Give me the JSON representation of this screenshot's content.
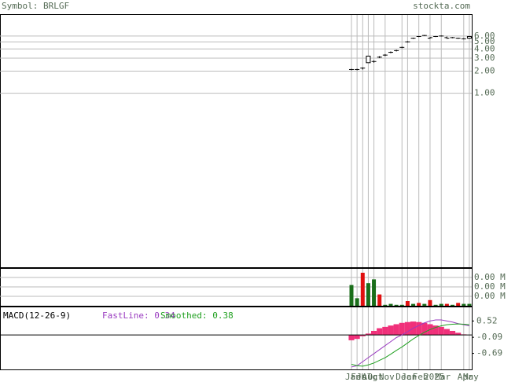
{
  "chart_data": [
    {
      "type": "candlestick",
      "title": "Symbol: BRLGF",
      "source": "stockta.com",
      "log_scale": true,
      "grid": true,
      "categories": [
        "Jan",
        "Feb",
        "Jul",
        "Aug",
        "Oct",
        null,
        "Nov",
        null,
        null,
        "Dec",
        "Jan",
        null,
        "Feb",
        null,
        "2025",
        null,
        "Mar",
        null,
        null,
        null,
        "Apr",
        "May"
      ],
      "open": [
        2.1,
        2.1,
        2.2,
        2.6,
        2.7,
        3.1,
        3.3,
        3.6,
        3.8,
        4.2,
        5.0,
        5.6,
        5.9,
        6.1,
        5.6,
        5.9,
        6.0,
        5.7,
        5.7,
        5.6,
        5.5,
        5.6
      ],
      "high": [
        2.15,
        2.15,
        2.25,
        3.2,
        2.8,
        3.2,
        3.4,
        3.7,
        3.9,
        4.3,
        5.1,
        5.7,
        6.0,
        6.2,
        5.8,
        6.0,
        6.1,
        5.9,
        5.8,
        5.7,
        5.6,
        6.0
      ],
      "low": [
        2.05,
        2.05,
        2.1,
        2.6,
        2.6,
        3.0,
        3.2,
        3.5,
        3.7,
        4.1,
        4.9,
        5.5,
        5.8,
        6.0,
        5.5,
        5.8,
        5.9,
        5.5,
        5.6,
        5.5,
        5.4,
        5.5
      ],
      "close": [
        2.1,
        2.1,
        2.2,
        3.2,
        2.7,
        3.1,
        3.3,
        3.6,
        3.8,
        4.2,
        5.0,
        5.6,
        5.9,
        6.1,
        5.7,
        5.9,
        6.0,
        5.6,
        5.7,
        5.6,
        5.5,
        5.9
      ],
      "ylim": [
        0.0043,
        11.9
      ],
      "yticks": [
        {
          "value": 1,
          "label": "1.00"
        },
        {
          "value": 2,
          "label": "2.00"
        },
        {
          "value": 3,
          "label": "3.00"
        },
        {
          "value": 4,
          "label": "4.00"
        },
        {
          "value": 5,
          "label": "5.00"
        },
        {
          "value": 6,
          "label": "6.00"
        }
      ]
    },
    {
      "type": "bar",
      "values": [
        0.0022,
        0.0008,
        0.0035,
        0.0024,
        0.0028,
        0.0012,
        0.0001,
        0.0002,
        0.0001,
        0.0001,
        0.0005,
        0.0002,
        0.0003,
        0.0002,
        0.0006,
        0.0001,
        0.0002,
        0.0002,
        0.0001,
        0.0003,
        0.0002,
        0.0002
      ],
      "colors": [
        "#1a6e1a",
        "#1a6e1a",
        "#e01010",
        "#1a6e1a",
        "#1a6e1a",
        "#e01010",
        "#1a6e1a",
        "#1a6e1a",
        "#1a6e1a",
        "#1a6e1a",
        "#e01010",
        "#1a6e1a",
        "#e01010",
        "#1a6e1a",
        "#e01010",
        "#1a6e1a",
        "#1a6e1a",
        "#e01010",
        "#1a6e1a",
        "#e01010",
        "#1a6e1a",
        "#1a6e1a"
      ],
      "ylim": [
        0,
        0.004
      ],
      "yticks": [
        {
          "value": 0.003,
          "label": "0.00 M"
        },
        {
          "value": 0.002,
          "label": "0.00 M"
        },
        {
          "value": 0.001,
          "label": "0.00 M"
        }
      ]
    },
    {
      "type": "macd",
      "title": "MACD(12-26-9)",
      "histogram": {
        "color": "#f0307a",
        "values": [
          -0.2,
          -0.15,
          -0.05,
          0.05,
          0.15,
          0.25,
          0.3,
          0.35,
          0.4,
          0.45,
          0.48,
          0.5,
          0.48,
          0.45,
          0.4,
          0.35,
          0.3,
          0.22,
          0.15,
          0.08,
          0.02,
          0.0
        ]
      },
      "series": [
        {
          "name": "FastLine: 0.34",
          "color": "#9a3cc0",
          "values": [
            -1.2,
            -1.15,
            -1.0,
            -0.85,
            -0.7,
            -0.55,
            -0.4,
            -0.25,
            -0.1,
            0.0,
            0.12,
            0.25,
            0.35,
            0.45,
            0.52,
            0.56,
            0.56,
            0.52,
            0.48,
            0.42,
            0.38,
            0.34
          ]
        },
        {
          "name": "Smoothed: 0.38",
          "color": "#20a020",
          "values": [
            -1.1,
            -1.15,
            -1.17,
            -1.12,
            -1.05,
            -0.95,
            -0.85,
            -0.72,
            -0.58,
            -0.45,
            -0.3,
            -0.15,
            -0.02,
            0.1,
            0.2,
            0.28,
            0.34,
            0.38,
            0.4,
            0.41,
            0.4,
            0.38
          ]
        }
      ],
      "ylim": [
        -1.29,
        1.06
      ],
      "yticks": [
        0.52,
        -0.09,
        -0.69
      ]
    }
  ]
}
